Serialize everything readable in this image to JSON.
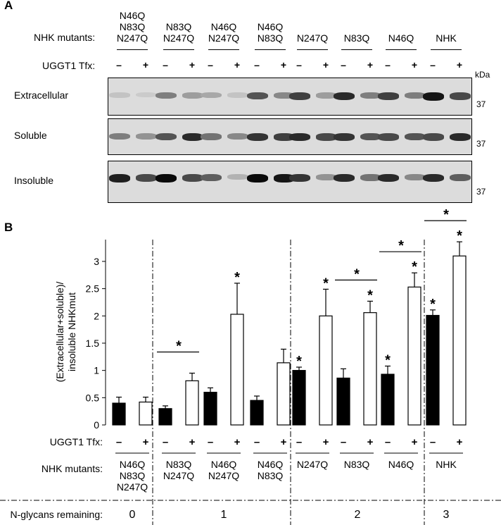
{
  "panel_a": {
    "label": "A",
    "mutants_label": "NHK mutants:",
    "tfx_label": "UGGT1 Tfx:",
    "kda_label": "kDa",
    "mutants": [
      [
        "N46Q",
        "N83Q",
        "N247Q"
      ],
      [
        "N83Q",
        "N247Q"
      ],
      [
        "N46Q",
        "N247Q"
      ],
      [
        "N46Q",
        "N83Q"
      ],
      [
        "N247Q"
      ],
      [
        "N83Q"
      ],
      [
        "N46Q"
      ],
      [
        "NHK"
      ]
    ],
    "minus": "–",
    "plus": "+",
    "blots": [
      {
        "label": "Extracellular",
        "marker": "37",
        "intensity": [
          0.12,
          0.08,
          0.45,
          0.3,
          0.25,
          0.12,
          0.65,
          0.4,
          0.75,
          0.3,
          0.85,
          0.45,
          0.75,
          0.45,
          0.95,
          0.7
        ]
      },
      {
        "label": "Soluble",
        "marker": "37",
        "intensity": [
          0.45,
          0.35,
          0.65,
          0.85,
          0.5,
          0.4,
          0.8,
          0.75,
          0.85,
          0.7,
          0.8,
          0.65,
          0.7,
          0.65,
          0.7,
          0.85
        ]
      },
      {
        "label": "Insoluble",
        "marker": "37",
        "intensity": [
          0.9,
          0.7,
          1.0,
          0.7,
          0.6,
          0.2,
          1.0,
          0.95,
          0.8,
          0.35,
          0.85,
          0.5,
          0.85,
          0.4,
          0.85,
          0.6
        ]
      }
    ]
  },
  "panel_b": {
    "label": "B",
    "tfx_label": "UGGT1 Tfx:",
    "mutants_label": "NHK mutants:",
    "glycans_label": "N-glycans remaining:",
    "glycan_groups": [
      "0",
      "1",
      "2",
      "3"
    ],
    "minus": "–",
    "plus": "+",
    "star": "*"
  },
  "chart_data": {
    "type": "bar",
    "ylabel": "(Extracellular+soluble)/\ninsoluble NHKmut",
    "ylim": [
      0,
      3.4
    ],
    "yticks": [
      "0",
      "0.5",
      "1",
      "1.5",
      "2",
      "2.5",
      "3"
    ],
    "categories": [
      "N46Q N83Q N247Q",
      "N83Q N247Q",
      "N46Q N247Q",
      "N46Q N83Q",
      "N247Q",
      "N83Q",
      "N46Q",
      "NHK"
    ],
    "series": [
      {
        "name": "–",
        "color": "#000000",
        "values": [
          0.4,
          0.3,
          0.6,
          0.45,
          1.0,
          0.86,
          0.93,
          2.01
        ],
        "errors": [
          0.11,
          0.05,
          0.08,
          0.08,
          0.06,
          0.17,
          0.15,
          0.1
        ]
      },
      {
        "name": "+",
        "color": "#ffffff",
        "values": [
          0.42,
          0.81,
          2.03,
          1.14,
          2.0,
          2.06,
          2.53,
          3.1
        ],
        "errors": [
          0.09,
          0.14,
          0.57,
          0.25,
          0.49,
          0.21,
          0.26,
          0.26
        ]
      }
    ],
    "significance": {
      "minus": [
        false,
        false,
        false,
        false,
        true,
        false,
        true,
        true
      ],
      "plus": [
        false,
        false,
        true,
        false,
        true,
        true,
        true,
        true
      ],
      "pairs": [
        false,
        true,
        false,
        false,
        false,
        true,
        true,
        true
      ]
    }
  }
}
